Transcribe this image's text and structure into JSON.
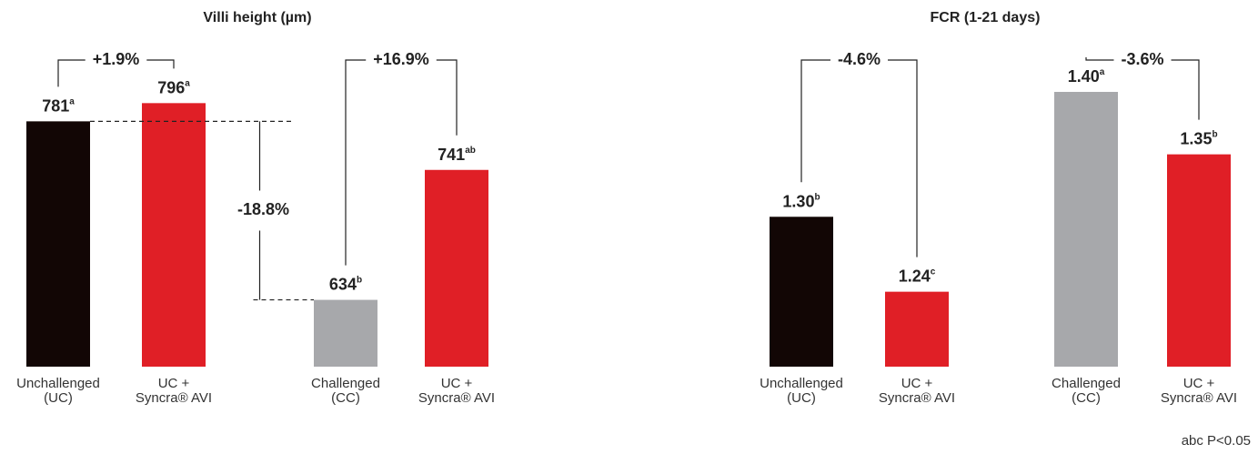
{
  "chart_data": [
    {
      "type": "bar",
      "title": "Villi height (µm)",
      "categories": [
        [
          "Unchallenged",
          "(UC)"
        ],
        [
          "UC +",
          "Syncra® AVI"
        ],
        [
          "Challenged",
          "(CC)"
        ],
        [
          "UC +",
          "Syncra® AVI"
        ]
      ],
      "values": [
        781,
        796,
        634,
        741
      ],
      "letters": [
        "a",
        "a",
        "b",
        "ab"
      ],
      "colors": [
        "#120605",
        "#e01f26",
        "#a7a8ab",
        "#e01f26"
      ],
      "ylim": [
        579,
        800
      ],
      "annotations": [
        {
          "text": "+1.9%",
          "bars": [
            0,
            1
          ],
          "kind": "bracket"
        },
        {
          "text": "+16.9%",
          "bars": [
            2,
            3
          ],
          "kind": "bracket"
        },
        {
          "text": "-18.8%",
          "bars": [
            0,
            2
          ],
          "kind": "drop"
        }
      ]
    },
    {
      "type": "bar",
      "title": "FCR (1-21 days)",
      "categories": [
        [
          "Unchallenged",
          "(UC)"
        ],
        [
          "UC +",
          "Syncra® AVI"
        ],
        [
          "Challenged",
          "(CC)"
        ],
        [
          "UC +",
          "Syncra® AVI"
        ]
      ],
      "values": [
        1.3,
        1.24,
        1.4,
        1.35
      ],
      "value_labels": [
        "1.30",
        "1.24",
        "1.40",
        "1.35"
      ],
      "letters": [
        "b",
        "c",
        "a",
        "b"
      ],
      "colors": [
        "#120605",
        "#e01f26",
        "#a7a8ab",
        "#e01f26"
      ],
      "ylim": [
        1.18,
        1.4
      ],
      "annotations": [
        {
          "text": "-4.6%",
          "bars": [
            0,
            1
          ],
          "kind": "bracket"
        },
        {
          "text": "-3.6%",
          "bars": [
            2,
            3
          ],
          "kind": "bracket"
        }
      ]
    }
  ],
  "footnote": "abc P<0.05"
}
